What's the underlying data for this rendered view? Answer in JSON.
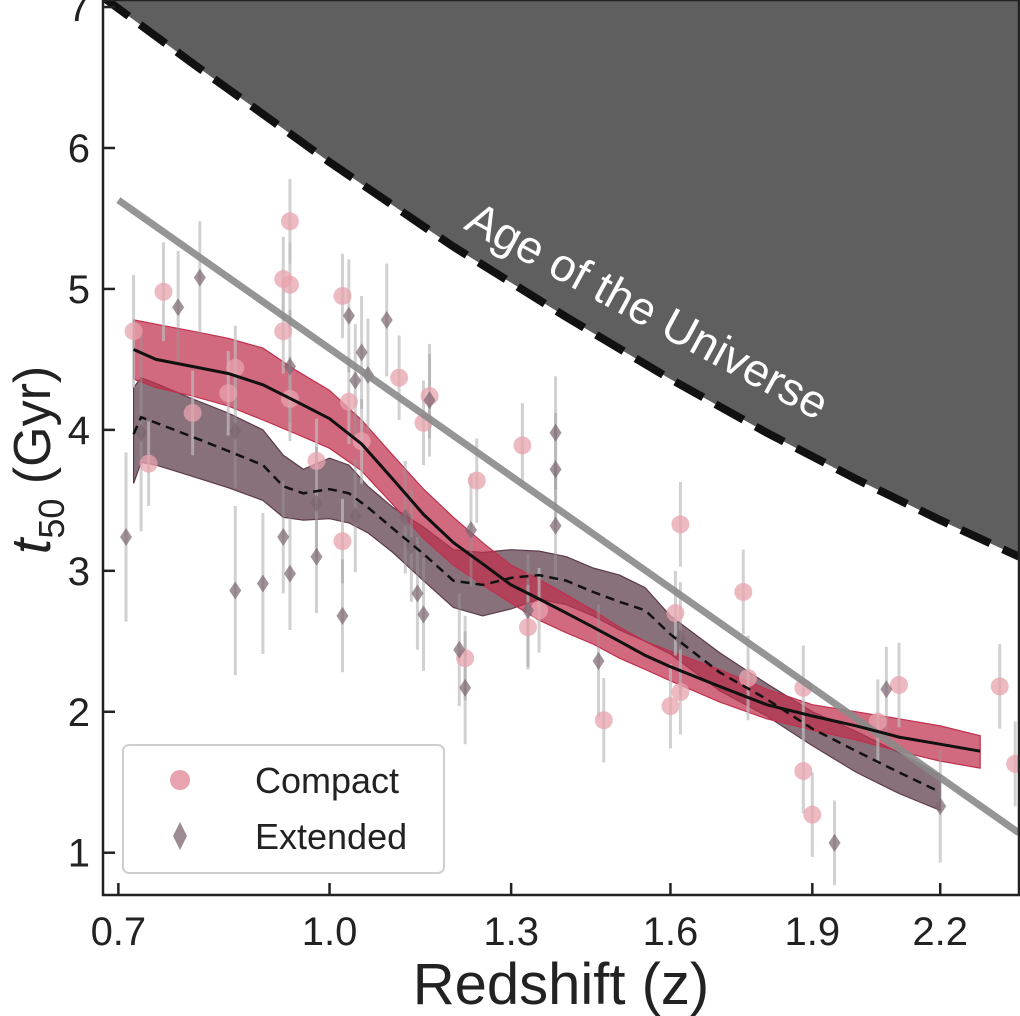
{
  "chart_data": {
    "type": "scatter",
    "xlabel": "Redshift (z)",
    "ylabel_main": "t",
    "ylabel_sub": "50",
    "ylabel_units": " (Gyr)",
    "xlim": [
      0.68,
      2.4
    ],
    "ylim": [
      0.7,
      7.05
    ],
    "x_scale": "log(1+z)",
    "x_ticks": [
      0.7,
      1.0,
      1.3,
      1.6,
      1.9,
      2.2
    ],
    "x_tick_labels": [
      "0.7",
      "1.0",
      "1.3",
      "1.6",
      "1.9",
      "2.2"
    ],
    "y_ticks": [
      1,
      2,
      3,
      4,
      5,
      6,
      7
    ],
    "y_tick_labels": [
      "1",
      "2",
      "3",
      "4",
      "5",
      "6",
      "7"
    ],
    "annotation": "Age of the Universe",
    "colors": {
      "compact": "#c0304d",
      "compact_points": "#e8a3ae",
      "extended": "#5c3a4a",
      "extended_points": "#7a6570",
      "universe_fill": "#5f5f5f",
      "fit_line": "#8a8a8a",
      "errorbar": "#bdbdbd"
    },
    "legend": {
      "placement": "bottom-left",
      "entries": [
        {
          "label": "Compact",
          "marker": "circle"
        },
        {
          "label": "Extended",
          "marker": "diamond"
        }
      ]
    },
    "age_of_universe": {
      "x": [
        0.68,
        0.8,
        1.0,
        1.2,
        1.4,
        1.6,
        1.8,
        2.0,
        2.2,
        2.4
      ],
      "y": [
        7.07,
        6.6,
        5.9,
        5.3,
        4.8,
        4.36,
        3.98,
        3.65,
        3.36,
        3.1
      ]
    },
    "fit_line": {
      "x": [
        0.7,
        2.4
      ],
      "y": [
        5.63,
        1.14
      ]
    },
    "series": [
      {
        "name": "Compact",
        "median": {
          "x": [
            0.72,
            0.75,
            0.8,
            0.85,
            0.9,
            0.95,
            1.0,
            1.05,
            1.1,
            1.15,
            1.2,
            1.25,
            1.3,
            1.35,
            1.4,
            1.45,
            1.5,
            1.55,
            1.6,
            1.7,
            1.8,
            1.9,
            2.0,
            2.1,
            2.2,
            2.3
          ],
          "y": [
            4.57,
            4.5,
            4.45,
            4.4,
            4.32,
            4.2,
            4.08,
            3.9,
            3.65,
            3.4,
            3.2,
            3.05,
            2.9,
            2.8,
            2.7,
            2.6,
            2.5,
            2.4,
            2.32,
            2.18,
            2.05,
            1.97,
            1.9,
            1.82,
            1.77,
            1.72
          ]
        },
        "band_upper": [
          4.78,
          4.75,
          4.7,
          4.65,
          4.58,
          4.42,
          4.28,
          4.07,
          3.82,
          3.58,
          3.38,
          3.2,
          3.04,
          2.94,
          2.83,
          2.72,
          2.6,
          2.5,
          2.43,
          2.3,
          2.16,
          2.05,
          2.0,
          1.95,
          1.9,
          1.83
        ],
        "band_lower": [
          4.36,
          4.3,
          4.24,
          4.17,
          4.07,
          3.97,
          3.87,
          3.71,
          3.47,
          3.23,
          3.04,
          2.9,
          2.77,
          2.65,
          2.56,
          2.48,
          2.38,
          2.3,
          2.22,
          2.07,
          1.95,
          1.87,
          1.8,
          1.72,
          1.65,
          1.6
        ],
        "points": [
          {
            "x": 0.72,
            "y": 4.7,
            "yerr": 0.4
          },
          {
            "x": 0.74,
            "y": 3.76,
            "yerr": 0.3
          },
          {
            "x": 0.76,
            "y": 4.98,
            "yerr": 0.35
          },
          {
            "x": 0.8,
            "y": 4.12,
            "yerr": 0.3
          },
          {
            "x": 0.85,
            "y": 4.26,
            "yerr": 0.3
          },
          {
            "x": 0.86,
            "y": 4.44,
            "yerr": 0.3
          },
          {
            "x": 0.93,
            "y": 5.07,
            "yerr": 0.3
          },
          {
            "x": 0.93,
            "y": 4.7,
            "yerr": 0.3
          },
          {
            "x": 0.94,
            "y": 5.48,
            "yerr": 0.3
          },
          {
            "x": 0.94,
            "y": 5.03,
            "yerr": 0.3
          },
          {
            "x": 0.94,
            "y": 4.22,
            "yerr": 0.3
          },
          {
            "x": 0.98,
            "y": 3.78,
            "yerr": 0.3
          },
          {
            "x": 1.02,
            "y": 4.95,
            "yerr": 0.3
          },
          {
            "x": 1.02,
            "y": 3.21,
            "yerr": 0.3
          },
          {
            "x": 1.03,
            "y": 4.2,
            "yerr": 0.3
          },
          {
            "x": 1.05,
            "y": 3.92,
            "yerr": 0.3
          },
          {
            "x": 1.11,
            "y": 4.37,
            "yerr": 0.3
          },
          {
            "x": 1.15,
            "y": 4.05,
            "yerr": 0.3
          },
          {
            "x": 1.16,
            "y": 4.24,
            "yerr": 0.3
          },
          {
            "x": 1.22,
            "y": 2.38,
            "yerr": 0.3
          },
          {
            "x": 1.24,
            "y": 3.64,
            "yerr": 0.3
          },
          {
            "x": 1.32,
            "y": 3.89,
            "yerr": 0.3
          },
          {
            "x": 1.33,
            "y": 2.6,
            "yerr": 0.3
          },
          {
            "x": 1.35,
            "y": 2.72,
            "yerr": 0.3
          },
          {
            "x": 1.47,
            "y": 1.94,
            "yerr": 0.3
          },
          {
            "x": 1.6,
            "y": 2.04,
            "yerr": 0.3
          },
          {
            "x": 1.61,
            "y": 2.7,
            "yerr": 0.3
          },
          {
            "x": 1.62,
            "y": 2.14,
            "yerr": 0.3
          },
          {
            "x": 1.62,
            "y": 3.33,
            "yerr": 0.3
          },
          {
            "x": 1.75,
            "y": 2.85,
            "yerr": 0.3
          },
          {
            "x": 1.76,
            "y": 2.24,
            "yerr": 0.3
          },
          {
            "x": 1.88,
            "y": 2.17,
            "yerr": 0.3
          },
          {
            "x": 1.88,
            "y": 1.58,
            "yerr": 0.3
          },
          {
            "x": 1.9,
            "y": 1.27,
            "yerr": 0.3
          },
          {
            "x": 2.05,
            "y": 1.93,
            "yerr": 0.3
          },
          {
            "x": 2.1,
            "y": 2.19,
            "yerr": 0.3
          },
          {
            "x": 2.35,
            "y": 2.18,
            "yerr": 0.3
          },
          {
            "x": 2.39,
            "y": 1.63,
            "yerr": 0.3
          }
        ]
      },
      {
        "name": "Extended",
        "median": {
          "x": [
            0.72,
            0.73,
            0.75,
            0.8,
            0.85,
            0.9,
            0.93,
            0.96,
            1.0,
            1.03,
            1.06,
            1.1,
            1.15,
            1.2,
            1.25,
            1.3,
            1.35,
            1.4,
            1.45,
            1.5,
            1.55,
            1.6,
            1.7,
            1.8,
            1.9,
            2.0,
            2.1,
            2.2
          ],
          "y": [
            3.97,
            4.09,
            4.05,
            3.95,
            3.85,
            3.75,
            3.6,
            3.55,
            3.58,
            3.55,
            3.45,
            3.3,
            3.12,
            2.93,
            2.9,
            2.95,
            2.97,
            2.93,
            2.85,
            2.78,
            2.72,
            2.55,
            2.28,
            2.09,
            1.88,
            1.72,
            1.57,
            1.43
          ]
        },
        "band_upper": [
          4.3,
          4.37,
          4.33,
          4.22,
          4.12,
          4.0,
          3.82,
          3.72,
          3.8,
          3.75,
          3.6,
          3.45,
          3.31,
          3.15,
          3.13,
          3.15,
          3.14,
          3.1,
          3.02,
          2.97,
          2.88,
          2.68,
          2.42,
          2.2,
          2.0,
          1.86,
          1.71,
          1.55
        ],
        "band_lower": [
          3.62,
          3.77,
          3.75,
          3.67,
          3.59,
          3.5,
          3.38,
          3.36,
          3.37,
          3.34,
          3.27,
          3.13,
          2.93,
          2.74,
          2.68,
          2.73,
          2.8,
          2.76,
          2.68,
          2.58,
          2.5,
          2.41,
          2.15,
          1.97,
          1.76,
          1.57,
          1.42,
          1.3
        ]
      }
    ],
    "extended_points": [
      {
        "x": 0.71,
        "y": 3.24,
        "yerr": 0.6
      },
      {
        "x": 0.73,
        "y": 3.98,
        "yerr": 0.7
      },
      {
        "x": 0.78,
        "y": 4.87,
        "yerr": 0.4
      },
      {
        "x": 0.81,
        "y": 5.08,
        "yerr": 0.4
      },
      {
        "x": 0.86,
        "y": 3.99,
        "yerr": 0.4
      },
      {
        "x": 0.86,
        "y": 2.86,
        "yerr": 0.6
      },
      {
        "x": 0.9,
        "y": 2.91,
        "yerr": 0.5
      },
      {
        "x": 0.93,
        "y": 3.24,
        "yerr": 0.4
      },
      {
        "x": 0.94,
        "y": 2.98,
        "yerr": 0.4
      },
      {
        "x": 0.94,
        "y": 4.45,
        "yerr": 0.4
      },
      {
        "x": 0.98,
        "y": 3.1,
        "yerr": 0.4
      },
      {
        "x": 0.98,
        "y": 3.48,
        "yerr": 0.4
      },
      {
        "x": 1.02,
        "y": 2.68,
        "yerr": 0.4
      },
      {
        "x": 1.03,
        "y": 4.81,
        "yerr": 0.4
      },
      {
        "x": 1.04,
        "y": 4.35,
        "yerr": 0.4
      },
      {
        "x": 1.04,
        "y": 3.39,
        "yerr": 0.4
      },
      {
        "x": 1.05,
        "y": 4.55,
        "yerr": 0.4
      },
      {
        "x": 1.06,
        "y": 4.39,
        "yerr": 0.4
      },
      {
        "x": 1.09,
        "y": 4.78,
        "yerr": 0.4
      },
      {
        "x": 1.12,
        "y": 3.38,
        "yerr": 0.4
      },
      {
        "x": 1.13,
        "y": 3.18,
        "yerr": 0.4
      },
      {
        "x": 1.14,
        "y": 2.84,
        "yerr": 0.4
      },
      {
        "x": 1.15,
        "y": 2.69,
        "yerr": 0.4
      },
      {
        "x": 1.16,
        "y": 4.21,
        "yerr": 0.4
      },
      {
        "x": 1.21,
        "y": 2.44,
        "yerr": 0.4
      },
      {
        "x": 1.22,
        "y": 2.17,
        "yerr": 0.4
      },
      {
        "x": 1.23,
        "y": 3.29,
        "yerr": 0.4
      },
      {
        "x": 1.33,
        "y": 2.72,
        "yerr": 0.4
      },
      {
        "x": 1.38,
        "y": 3.72,
        "yerr": 0.4
      },
      {
        "x": 1.38,
        "y": 3.98,
        "yerr": 0.4
      },
      {
        "x": 1.38,
        "y": 3.32,
        "yerr": 0.4
      },
      {
        "x": 1.46,
        "y": 2.36,
        "yerr": 0.4
      },
      {
        "x": 1.62,
        "y": 2.52,
        "yerr": 0.4
      },
      {
        "x": 1.95,
        "y": 1.07,
        "yerr": 0.3
      },
      {
        "x": 2.07,
        "y": 2.16,
        "yerr": 0.3
      },
      {
        "x": 2.2,
        "y": 1.33,
        "yerr": 0.4
      }
    ]
  }
}
